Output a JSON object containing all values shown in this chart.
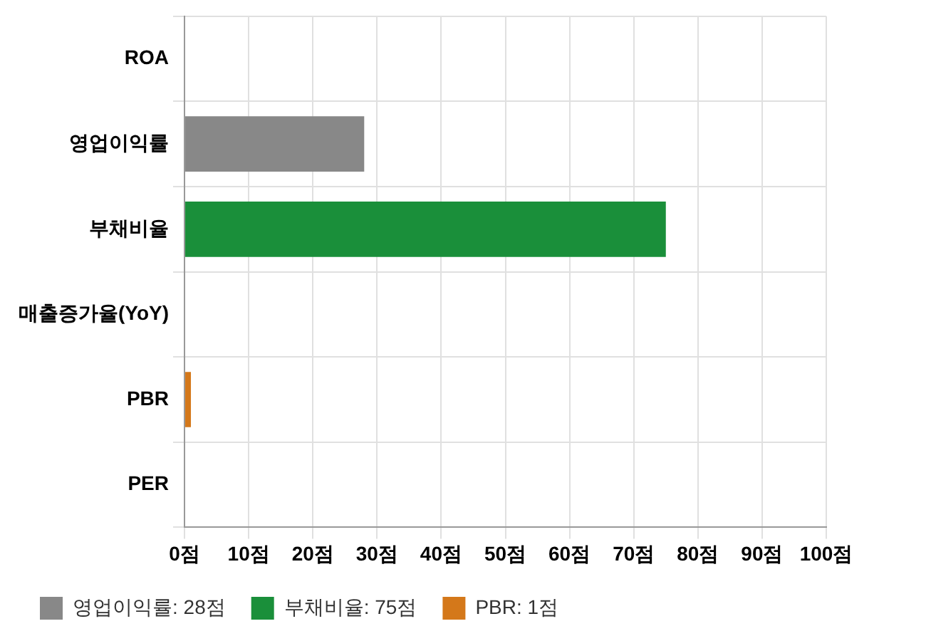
{
  "chart_data": {
    "type": "bar",
    "orientation": "horizontal",
    "stacked": true,
    "categories": [
      "ROA",
      "영업이익률",
      "부채비율",
      "매출증가율(YoY)",
      "PBR",
      "PER"
    ],
    "series": [
      {
        "name": "영업이익률: 28점",
        "color": "#888888",
        "values": [
          null,
          28,
          null,
          null,
          null,
          null
        ]
      },
      {
        "name": "부채비율: 75점",
        "color": "#1a8f3a",
        "values": [
          null,
          null,
          75,
          null,
          null,
          null
        ]
      },
      {
        "name": "PBR: 1점",
        "color": "#d4781a",
        "values": [
          null,
          null,
          null,
          null,
          1,
          null
        ]
      }
    ],
    "xlim": [
      0,
      100
    ],
    "xticks": [
      {
        "value": 0,
        "label": "0점"
      },
      {
        "value": 10,
        "label": "10점"
      },
      {
        "value": 20,
        "label": "20점"
      },
      {
        "value": 30,
        "label": "30점"
      },
      {
        "value": 40,
        "label": "40점"
      },
      {
        "value": 50,
        "label": "50점"
      },
      {
        "value": 60,
        "label": "60점"
      },
      {
        "value": 70,
        "label": "70점"
      },
      {
        "value": 80,
        "label": "80점"
      },
      {
        "value": 90,
        "label": "90점"
      },
      {
        "value": 100,
        "label": "100점"
      }
    ],
    "grid": true,
    "legend": "bottom"
  }
}
